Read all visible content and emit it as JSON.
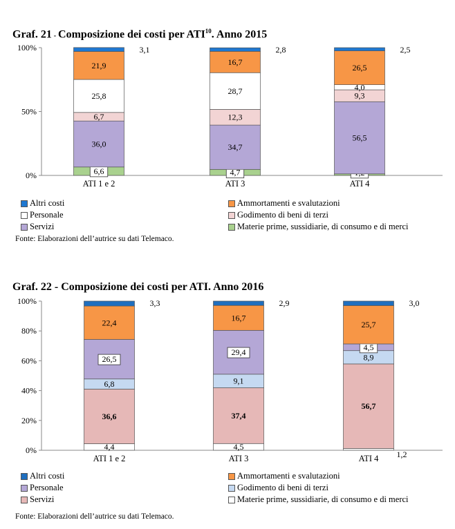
{
  "chart_data": [
    {
      "type": "bar",
      "stacked": true,
      "percent_axis": true,
      "title_prefix": "Graf.  21",
      "title_sep": " - ",
      "title_main": "Composizione dei costi per ATI",
      "title_sup": "10",
      "title_tail": ". Anno 2015",
      "categories": [
        "ATI 1 e 2",
        "ATI 3",
        "ATI 4"
      ],
      "yticks": [
        "0%",
        "50%",
        "100%"
      ],
      "ylim": [
        0,
        100
      ],
      "series": [
        {
          "name": "Materie prime, sussidiarie, di consumo e di merci",
          "color": "#a9d18e",
          "values": [
            6.6,
            4.7,
            1.2
          ]
        },
        {
          "name": "Servizi",
          "color": "#b4a7d6",
          "values": [
            36.0,
            34.7,
            56.5
          ]
        },
        {
          "name": "Godimento di beni di terzi",
          "color": "#f2d4d4",
          "values": [
            6.7,
            12.3,
            9.3
          ]
        },
        {
          "name": "Personale",
          "color": "#ffffff",
          "values": [
            25.8,
            28.7,
            4.0
          ]
        },
        {
          "name": "Ammortamenti e svalutazioni",
          "color": "#f79646",
          "values": [
            21.9,
            16.7,
            26.5
          ]
        },
        {
          "name": "Altri costi",
          "color": "#1f78d1",
          "values": [
            3.1,
            2.8,
            2.5
          ]
        }
      ],
      "legend_order": [
        "Altri costi",
        "Ammortamenti e svalutazioni",
        "Personale",
        "Godimento di beni di terzi",
        "Servizi",
        "Materie prime, sussidiarie, di consumo e di merci"
      ],
      "legend": "bottom",
      "source": "Fonte: Elaborazioni dell’autrice su dati Telemaco."
    },
    {
      "type": "bar",
      "stacked": true,
      "percent_axis": true,
      "title_prefix": "Graf.  22",
      "title_sep": " - ",
      "title_main": "Composizione dei costi per ATI. Anno 2016",
      "title_sup": "",
      "title_tail": "",
      "categories": [
        "ATI 1 e 2",
        "ATI 3",
        "ATI 4"
      ],
      "yticks": [
        "0%",
        "20%",
        "40%",
        "60%",
        "80%",
        "100%"
      ],
      "ylim": [
        0,
        100
      ],
      "series": [
        {
          "name": "Materie prime, sussidiarie, di consumo e di merci",
          "color": "#ffffff",
          "values": [
            4.4,
            4.5,
            1.2
          ]
        },
        {
          "name": "Servizi",
          "color": "#e6b8b7",
          "values": [
            36.6,
            37.4,
            56.7
          ],
          "bold": true
        },
        {
          "name": "Godimento di beni di terzi",
          "color": "#c5d9f1",
          "values": [
            6.8,
            9.1,
            8.9
          ]
        },
        {
          "name": "Personale",
          "color": "#b4a7d6",
          "values": [
            26.5,
            29.4,
            4.5
          ]
        },
        {
          "name": "Ammortamenti e svalutazioni",
          "color": "#f79646",
          "values": [
            22.4,
            16.7,
            25.7
          ]
        },
        {
          "name": "Altri costi",
          "color": "#1f6fbf",
          "values": [
            3.3,
            2.9,
            3.0
          ]
        }
      ],
      "legend_order": [
        "Altri costi",
        "Ammortamenti e svalutazioni",
        "Personale",
        "Godimento di beni di terzi",
        "Servizi",
        "Materie prime, sussidiarie, di consumo e di merci"
      ],
      "legend": "bottom",
      "source": "Fonte: Elaborazioni dell’autrice su dati Telemaco."
    }
  ]
}
